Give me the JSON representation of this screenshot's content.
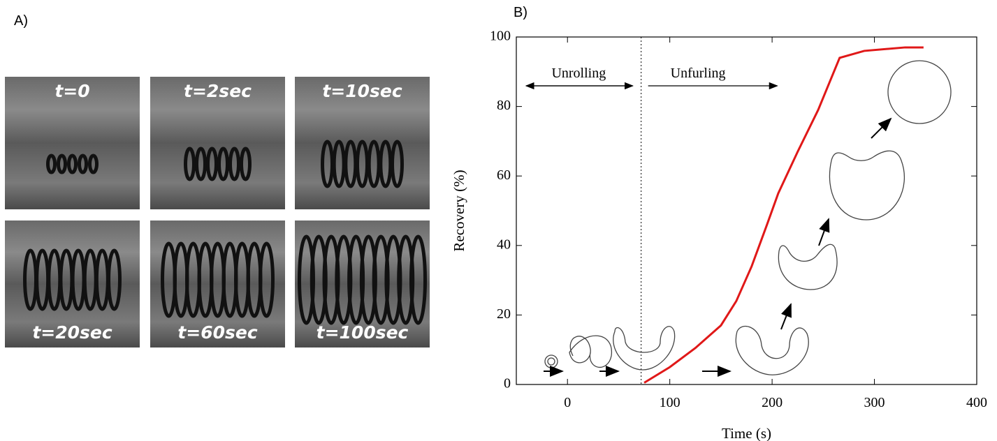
{
  "panel_a": {
    "label": "A)",
    "captions": [
      "t=0",
      "t=2sec",
      "t=10sec",
      "t=20sec",
      "t=60sec",
      "t=100sec"
    ]
  },
  "chart_data": {
    "type": "line",
    "label": "B)",
    "x_label": "Time (s)",
    "y_label": "Recovery (%)",
    "xlim": [
      -50,
      400
    ],
    "xticks": [
      0,
      100,
      200,
      300,
      400
    ],
    "ylim": [
      0,
      100
    ],
    "yticks": [
      0,
      20,
      40,
      60,
      80,
      100
    ],
    "x": [
      75,
      100,
      125,
      150,
      165,
      180,
      195,
      206,
      225,
      245,
      266,
      290,
      330,
      348
    ],
    "series": [
      {
        "color": "#e01818",
        "values": [
          0.5,
          5,
          10.5,
          17,
          24,
          34,
          46,
          55,
          67,
          79,
          94,
          96,
          97,
          97
        ]
      }
    ],
    "phase_boundary": 72,
    "annotations": [
      "Unrolling",
      "Unfurling"
    ]
  }
}
